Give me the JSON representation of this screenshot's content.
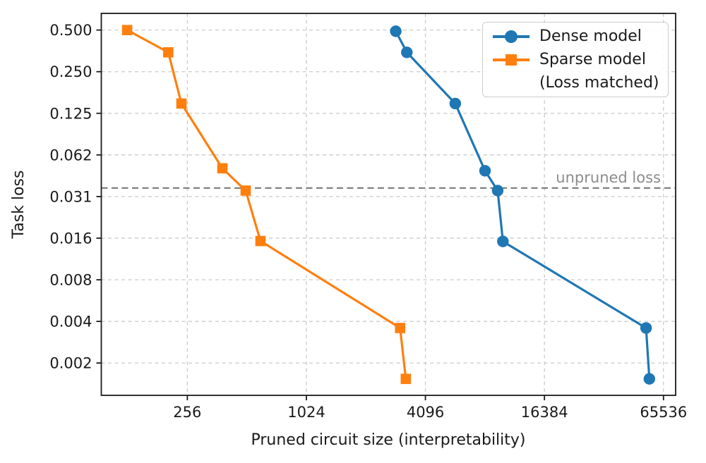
{
  "chart_data": {
    "type": "line",
    "title": "",
    "xlabel": "Pruned circuit size (interpretability)",
    "ylabel": "Task loss",
    "x_scale": "log2",
    "y_scale": "log2",
    "xlim": [
      94,
      75500
    ],
    "ylim": [
      0.00114,
      0.66
    ],
    "grid": true,
    "grid_style": {
      "color": "#cacaca",
      "dash": "5 4.5"
    },
    "frame_color": "#1a1a1a",
    "x_ticks": {
      "values": [
        256,
        1024,
        4096,
        16384,
        65536
      ],
      "labels": [
        "256",
        "1024",
        "4096",
        "16384",
        "65536"
      ]
    },
    "y_ticks": {
      "values": [
        0.5,
        0.25,
        0.125,
        0.0625,
        0.03125,
        0.015625,
        0.0078125,
        0.00390625,
        0.001953125
      ],
      "labels": [
        "0.500",
        "0.250",
        "0.125",
        "0.062",
        "0.031",
        "0.016",
        "0.008",
        "0.004",
        "0.002"
      ]
    },
    "annotation": {
      "text": "unpruned loss",
      "y_value": 0.036,
      "line_color": "#7a7a7a",
      "text_color": "#8c8c8c",
      "dash": "9 5.5"
    },
    "series": [
      {
        "name": "Dense model",
        "color": "#1f77b4",
        "marker": "circle",
        "points": [
          [
            2900,
            0.49
          ],
          [
            3300,
            0.345
          ],
          [
            5800,
            0.147
          ],
          [
            8200,
            0.048
          ],
          [
            9500,
            0.0345
          ],
          [
            10100,
            0.0148
          ],
          [
            53500,
            0.0035
          ],
          [
            55600,
            0.0015
          ]
        ]
      },
      {
        "name": "Sparse model (Loss matched)",
        "color": "#ff7f0e",
        "marker": "square",
        "points": [
          [
            127,
            0.5
          ],
          [
            205,
            0.345
          ],
          [
            239,
            0.147
          ],
          [
            385,
            0.05
          ],
          [
            505,
            0.0345
          ],
          [
            600,
            0.0149
          ],
          [
            3050,
            0.0035
          ],
          [
            3260,
            0.0015
          ]
        ]
      }
    ],
    "legend": {
      "position": "upper right",
      "entries": [
        {
          "label": "Dense model",
          "label2": "",
          "color": "#1f77b4",
          "marker": "circle"
        },
        {
          "label": "Sparse model",
          "label2": "(Loss matched)",
          "color": "#ff7f0e",
          "marker": "square"
        }
      ]
    }
  }
}
